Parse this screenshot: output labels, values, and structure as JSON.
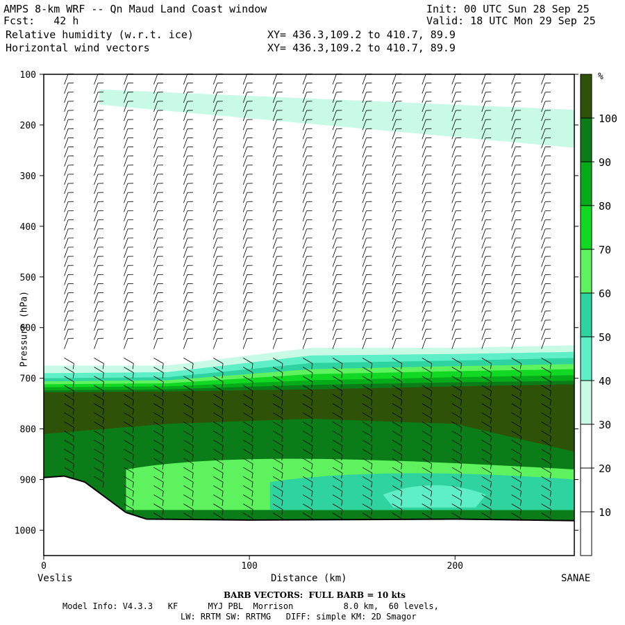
{
  "header": {
    "title": "AMPS 8-km WRF -- Qn Maud Land Coast window",
    "init": "Init: 00 UTC Sun 28 Sep 25",
    "fcst": "Fcst:   42 h",
    "valid": "Valid: 18 UTC Mon 29 Sep 25",
    "field1": "Relative humidity (w.r.t. ice)",
    "field1_xy": "XY= 436.3,109.2 to 410.7, 89.9",
    "field2": "Horizontal wind vectors",
    "field2_xy": "XY= 436.3,109.2 to 410.7, 89.9"
  },
  "footer": {
    "barb_note": "BARB VECTORS:  FULL BARB = 10 kts",
    "model_info": "Model Info: V4.3.3   KF      MYJ PBL  Morrison          8.0 km,  60 levels,",
    "physics": "LW: RRTM SW: RRTMG   DIFF: simple KM: 2D Smagor"
  },
  "chart_data": {
    "type": "heatmap",
    "title": "Relative humidity (w.r.t. ice)",
    "overlay": "Horizontal wind vectors (barbs)",
    "xlabel": "Distance (km)",
    "ylabel": "Pressure (hPa)",
    "xlim": [
      0,
      258
    ],
    "ylim": [
      1050,
      100
    ],
    "x_ticks": [
      0,
      100,
      200
    ],
    "y_ticks": [
      100,
      200,
      300,
      400,
      500,
      600,
      700,
      800,
      900,
      1000
    ],
    "left_endpoint": "Veslis",
    "right_endpoint": "SANAE",
    "colorbar": {
      "unit": "%",
      "levels": [
        10,
        20,
        30,
        40,
        50,
        60,
        70,
        80,
        90,
        100
      ],
      "colors": [
        "#ffffff",
        "#ffffff",
        "#ffffff",
        "#c8fae6",
        "#5fefc6",
        "#2ed3a0",
        "#5ef25e",
        "#11d822",
        "#05ab18",
        "#0a7d18",
        "#2f5209"
      ]
    },
    "terrain_surface_hPa": [
      {
        "x": 0,
        "p": 896
      },
      {
        "x": 10,
        "p": 893
      },
      {
        "x": 20,
        "p": 905
      },
      {
        "x": 30,
        "p": 935
      },
      {
        "x": 40,
        "p": 965
      },
      {
        "x": 50,
        "p": 978
      },
      {
        "x": 100,
        "p": 980
      },
      {
        "x": 150,
        "p": 979
      },
      {
        "x": 200,
        "p": 978
      },
      {
        "x": 258,
        "p": 981
      }
    ],
    "rh_layers_percent": [
      {
        "range": "30-40",
        "top_hPa": [
          675,
          675,
          640,
          640,
          635
        ],
        "bottom_hPa": [
          1000,
          1000,
          1000,
          1000,
          1000
        ]
      },
      {
        "range": "40-50",
        "top_hPa": [
          690,
          688,
          655,
          652,
          648
        ]
      },
      {
        "range": "50-60",
        "top_hPa": [
          700,
          698,
          670,
          665,
          660
        ]
      },
      {
        "range": "60-70",
        "top_hPa": [
          706,
          704,
          682,
          676,
          672
        ]
      },
      {
        "range": "70-80",
        "top_hPa": [
          712,
          710,
          692,
          686,
          682
        ]
      },
      {
        "range": "80-90",
        "top_hPa": [
          718,
          716,
          704,
          698,
          694
        ]
      },
      {
        "range": "90-100",
        "top_hPa": [
          724,
          722,
          713,
          708,
          705
        ]
      },
      {
        "range": ">100",
        "top_hPa": [
          728,
          726,
          722,
          716,
          712
        ],
        "bottom_hPa": [
          810,
          790,
          780,
          790,
          845
        ]
      }
    ],
    "upper_moist_band": {
      "range": "30-40",
      "x": [
        27,
        258
      ],
      "top_hPa": [
        130,
        170
      ],
      "bottom_hPa": [
        160,
        245
      ]
    }
  }
}
